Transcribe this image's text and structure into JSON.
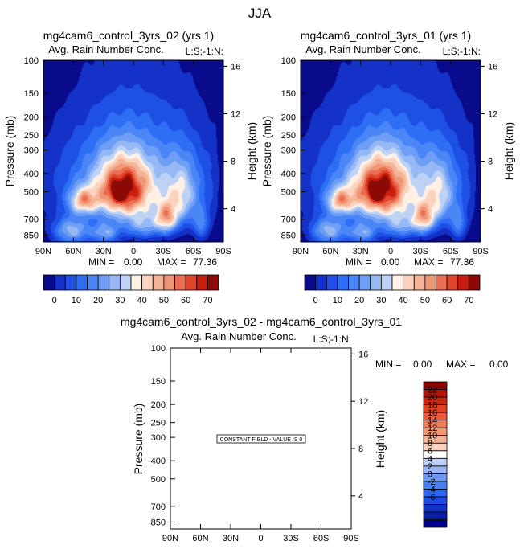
{
  "figure": {
    "season": "JJA"
  },
  "color_scales": {
    "main": [
      "#0a0a8c",
      "#1432c8",
      "#1e50e6",
      "#2d6ef5",
      "#4a86f5",
      "#6e9ef5",
      "#96b9f5",
      "#bed2f5",
      "#fff0e6",
      "#fad2be",
      "#f5b496",
      "#f09678",
      "#eb6e50",
      "#e1462d",
      "#c81e0f",
      "#8c0a05"
    ],
    "diff": [
      "#00008c",
      "#0a1ea0",
      "#1432c8",
      "#1e4be1",
      "#2d64f0",
      "#4a7ff5",
      "#6e9af5",
      "#96b6f5",
      "#bed0f5",
      "#ffffff",
      "#fad2be",
      "#f5b496",
      "#f29678",
      "#ef7a5a",
      "#eb5a3c",
      "#e1411e",
      "#c8280f",
      "#b4140a",
      "#8c0000"
    ]
  },
  "chart_data": [
    {
      "id": "panel-left",
      "type": "heatmap",
      "title": "mg4cam6_control_3yrs_02 (yrs 1)",
      "subtitle": "Avg. Rain Number Conc.",
      "units_label": "L:S;-1:N:",
      "ylabel": "Pressure (mb)",
      "y2label": "Height (km)",
      "x_ticks": [
        "90N",
        "60N",
        "30N",
        "0",
        "30S",
        "60S",
        "90S"
      ],
      "x_range": [
        90,
        -90
      ],
      "y_ticks": [
        "100",
        "150",
        "200",
        "250",
        "300",
        "400",
        "500",
        "700",
        "850"
      ],
      "y_range_mb": [
        100,
        925
      ],
      "y2_ticks": [
        "16",
        "12",
        "8",
        "4"
      ],
      "min_label": "MIN =",
      "min_value": "0.00",
      "max_label": "MAX =",
      "max_value": "77.36",
      "colorbar_labels": [
        "0",
        "10",
        "20",
        "30",
        "40",
        "50",
        "60",
        "70"
      ],
      "blobs": [
        {
          "lat": 10,
          "p": 490,
          "wlat": 26,
          "wp": 170,
          "amp": 52
        },
        {
          "lat": 15,
          "p": 500,
          "wlat": 7,
          "wp": 50,
          "amp": 25
        },
        {
          "lat": 50,
          "p": 560,
          "wlat": 14,
          "wp": 90,
          "amp": 38
        },
        {
          "lat": 0,
          "p": 440,
          "wlat": 75,
          "wp": 280,
          "amp": 30
        },
        {
          "lat": -33,
          "p": 690,
          "wlat": 11,
          "wp": 130,
          "amp": 38
        },
        {
          "lat": -48,
          "p": 530,
          "wlat": 16,
          "wp": 200,
          "amp": 24
        },
        {
          "lat": 62,
          "p": 810,
          "wlat": 18,
          "wp": 130,
          "amp": 30
        },
        {
          "lat": -10,
          "p": 760,
          "wlat": 18,
          "wp": 120,
          "amp": 22
        },
        {
          "lat": 28,
          "p": 830,
          "wlat": 14,
          "wp": 100,
          "amp": 25
        },
        {
          "lat": -68,
          "p": 750,
          "wlat": 8,
          "wp": 140,
          "amp": 18
        }
      ]
    },
    {
      "id": "panel-right",
      "type": "heatmap",
      "title": "mg4cam6_control_3yrs_01 (yrs 1)",
      "subtitle": "Avg. Rain Number Conc.",
      "units_label": "L:S;-1:N:",
      "ylabel": "Pressure (mb)",
      "y2label": "Height (km)",
      "x_ticks": [
        "90N",
        "60N",
        "30N",
        "0",
        "30S",
        "60S",
        "90S"
      ],
      "x_range": [
        90,
        -90
      ],
      "y_ticks": [
        "100",
        "150",
        "200",
        "250",
        "300",
        "400",
        "500",
        "700",
        "850"
      ],
      "y_range_mb": [
        100,
        925
      ],
      "y2_ticks": [
        "16",
        "12",
        "8",
        "4"
      ],
      "min_label": "MIN =",
      "min_value": "0.00",
      "max_label": "MAX =",
      "max_value": "77.36",
      "colorbar_labels": [
        "0",
        "10",
        "20",
        "30",
        "40",
        "50",
        "60",
        "70"
      ]
    },
    {
      "id": "panel-diff",
      "type": "heatmap",
      "title": "mg4cam6_control_3yrs_02 - mg4cam6_control_3yrs_01",
      "subtitle": "Avg. Rain Number Conc.",
      "units_label": "L:S;-1:N:",
      "ylabel": "Pressure (mb)",
      "y2label": "Height (km)",
      "x_ticks": [
        "90N",
        "60N",
        "30N",
        "0",
        "30S",
        "60S",
        "90S"
      ],
      "x_range": [
        90,
        -90
      ],
      "y_ticks": [
        "100",
        "150",
        "200",
        "250",
        "300",
        "400",
        "500",
        "700",
        "850"
      ],
      "y_range_mb": [
        100,
        925
      ],
      "y2_ticks": [
        "16",
        "12",
        "8",
        "4"
      ],
      "min_label": "MIN =",
      "min_value": "0.00",
      "max_label": "MAX =",
      "max_value": "0.00",
      "annotation": "CONSTANT FIELD - VALUE IS 0",
      "colorbar_labels": [
        "22",
        "20",
        "18",
        "16",
        "14",
        "12",
        "10",
        "8",
        "6",
        "4",
        "2",
        "0",
        "-2",
        "-4",
        "-6"
      ]
    }
  ]
}
